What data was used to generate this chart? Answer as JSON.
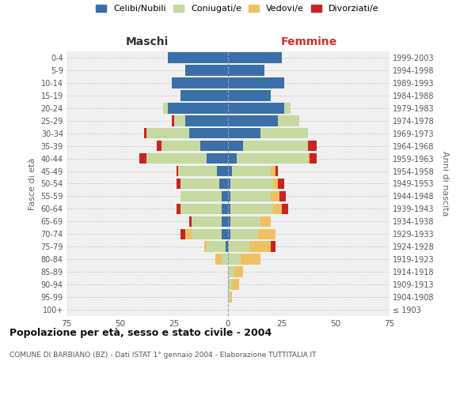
{
  "age_groups": [
    "100+",
    "95-99",
    "90-94",
    "85-89",
    "80-84",
    "75-79",
    "70-74",
    "65-69",
    "60-64",
    "55-59",
    "50-54",
    "45-49",
    "40-44",
    "35-39",
    "30-34",
    "25-29",
    "20-24",
    "15-19",
    "10-14",
    "5-9",
    "0-4"
  ],
  "birth_years": [
    "≤ 1903",
    "1904-1908",
    "1909-1913",
    "1914-1918",
    "1919-1923",
    "1924-1928",
    "1929-1933",
    "1934-1938",
    "1939-1943",
    "1944-1948",
    "1949-1953",
    "1954-1958",
    "1959-1963",
    "1964-1968",
    "1969-1973",
    "1974-1978",
    "1979-1983",
    "1984-1988",
    "1989-1993",
    "1994-1998",
    "1999-2003"
  ],
  "colors": {
    "celibe": "#3a6fa8",
    "coniugato": "#c5d9a0",
    "vedovo": "#f0c060",
    "divorziato": "#cc2222"
  },
  "males": {
    "celibe": [
      0,
      0,
      0,
      0,
      0,
      1,
      3,
      3,
      3,
      3,
      4,
      5,
      10,
      13,
      18,
      20,
      28,
      22,
      26,
      20,
      28
    ],
    "coniugato": [
      0,
      0,
      0,
      0,
      3,
      9,
      14,
      14,
      19,
      19,
      18,
      18,
      28,
      18,
      20,
      5,
      2,
      0,
      0,
      0,
      0
    ],
    "vedovo": [
      0,
      0,
      0,
      0,
      3,
      1,
      3,
      0,
      0,
      0,
      0,
      0,
      0,
      0,
      0,
      0,
      0,
      0,
      0,
      0,
      0
    ],
    "divorziato": [
      0,
      0,
      0,
      0,
      0,
      0,
      2,
      1,
      2,
      0,
      2,
      1,
      3,
      2,
      1,
      1,
      0,
      0,
      0,
      0,
      0
    ]
  },
  "females": {
    "nubile": [
      0,
      0,
      0,
      0,
      0,
      0,
      1,
      1,
      1,
      1,
      1,
      2,
      4,
      7,
      15,
      23,
      26,
      20,
      26,
      17,
      25
    ],
    "coniugata": [
      0,
      1,
      2,
      3,
      6,
      10,
      13,
      14,
      20,
      19,
      20,
      18,
      33,
      30,
      22,
      10,
      3,
      0,
      0,
      0,
      0
    ],
    "vedova": [
      0,
      1,
      3,
      4,
      9,
      10,
      8,
      5,
      4,
      4,
      2,
      2,
      1,
      0,
      0,
      0,
      0,
      0,
      0,
      0,
      0
    ],
    "divorziata": [
      0,
      0,
      0,
      0,
      0,
      2,
      0,
      0,
      3,
      3,
      3,
      1,
      3,
      4,
      0,
      0,
      0,
      0,
      0,
      0,
      0
    ]
  },
  "xlim": 75,
  "title": "Popolazione per età, sesso e stato civile - 2004",
  "subtitle": "COMUNE DI BARBIANO (BZ) - Dati ISTAT 1° gennaio 2004 - Elaborazione TUTTITALIA.IT",
  "ylabel_left": "Fasce di età",
  "ylabel_right": "Anni di nascita",
  "xlabel_left": "Maschi",
  "xlabel_right": "Femmine",
  "legend_labels": [
    "Celibi/Nubili",
    "Coniugati/e",
    "Vedovi/e",
    "Divorziati/e"
  ],
  "bg_color": "#ffffff",
  "plot_bg_color": "#f0f0f0"
}
